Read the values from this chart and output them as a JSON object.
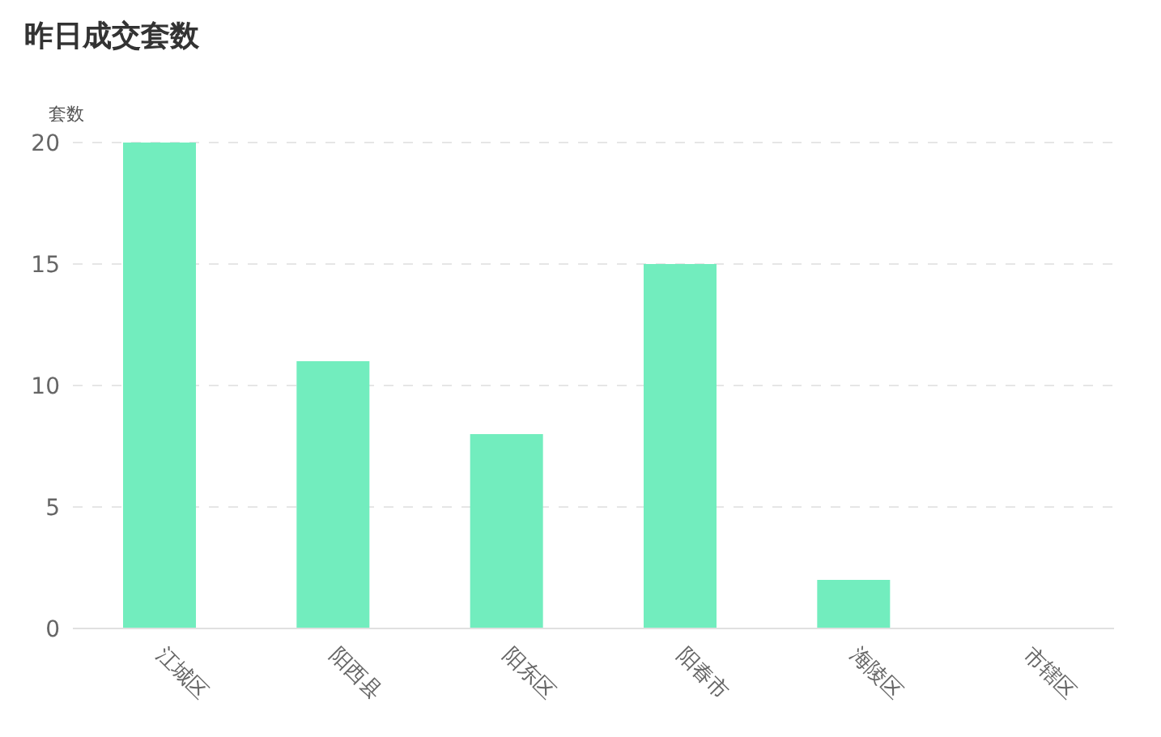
{
  "chart_data": {
    "type": "bar",
    "title": "昨日成交套数",
    "ylabel": "套数",
    "categories": [
      "江城区",
      "阳西县",
      "阳东区",
      "阳春市",
      "海陵区",
      "市辖区"
    ],
    "values": [
      20,
      11,
      8,
      15,
      2,
      0
    ],
    "color": "#72edbe",
    "ylim": [
      0,
      20
    ],
    "yticks": [
      0,
      5,
      10,
      15,
      20
    ],
    "grid": "y"
  }
}
